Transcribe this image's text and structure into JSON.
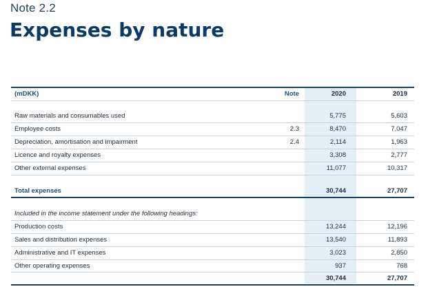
{
  "header": {
    "note_label": "Note 2.2",
    "title": "Expenses by nature"
  },
  "table": {
    "columns": {
      "label": "(mDKK)",
      "note": "Note",
      "y2020": "2020",
      "y2019": "2019"
    },
    "expense_rows": [
      {
        "label": "Raw materials and consumables used",
        "note": "",
        "y2020": "5,775",
        "y2019": "5,603"
      },
      {
        "label": "Employee costs",
        "note": "2.3",
        "y2020": "8,470",
        "y2019": "7,047"
      },
      {
        "label": "Depreciation, amortisation and impairment",
        "note": "2.4",
        "y2020": "2,114",
        "y2019": "1,963"
      },
      {
        "label": "Licence and royalty expenses",
        "note": "",
        "y2020": "3,308",
        "y2019": "2,777"
      },
      {
        "label": "Other external expenses",
        "note": "",
        "y2020": "11,077",
        "y2019": "10,317"
      }
    ],
    "total": {
      "label": "Total expenses",
      "y2020": "30,744",
      "y2019": "27,707"
    },
    "section_heading": "Included in the income statement under the following headings:",
    "heading_rows": [
      {
        "label": "Production costs",
        "y2020": "13,244",
        "y2019": "12,196"
      },
      {
        "label": "Sales and distribution expenses",
        "y2020": "13,540",
        "y2019": "11,893"
      },
      {
        "label": "Administrative and IT expenses",
        "y2020": "3,023",
        "y2019": "2,850"
      },
      {
        "label": "Other operating expenses",
        "y2020": "937",
        "y2019": "768"
      }
    ],
    "final_total": {
      "y2020": "30,744",
      "y2019": "27,707"
    }
  }
}
